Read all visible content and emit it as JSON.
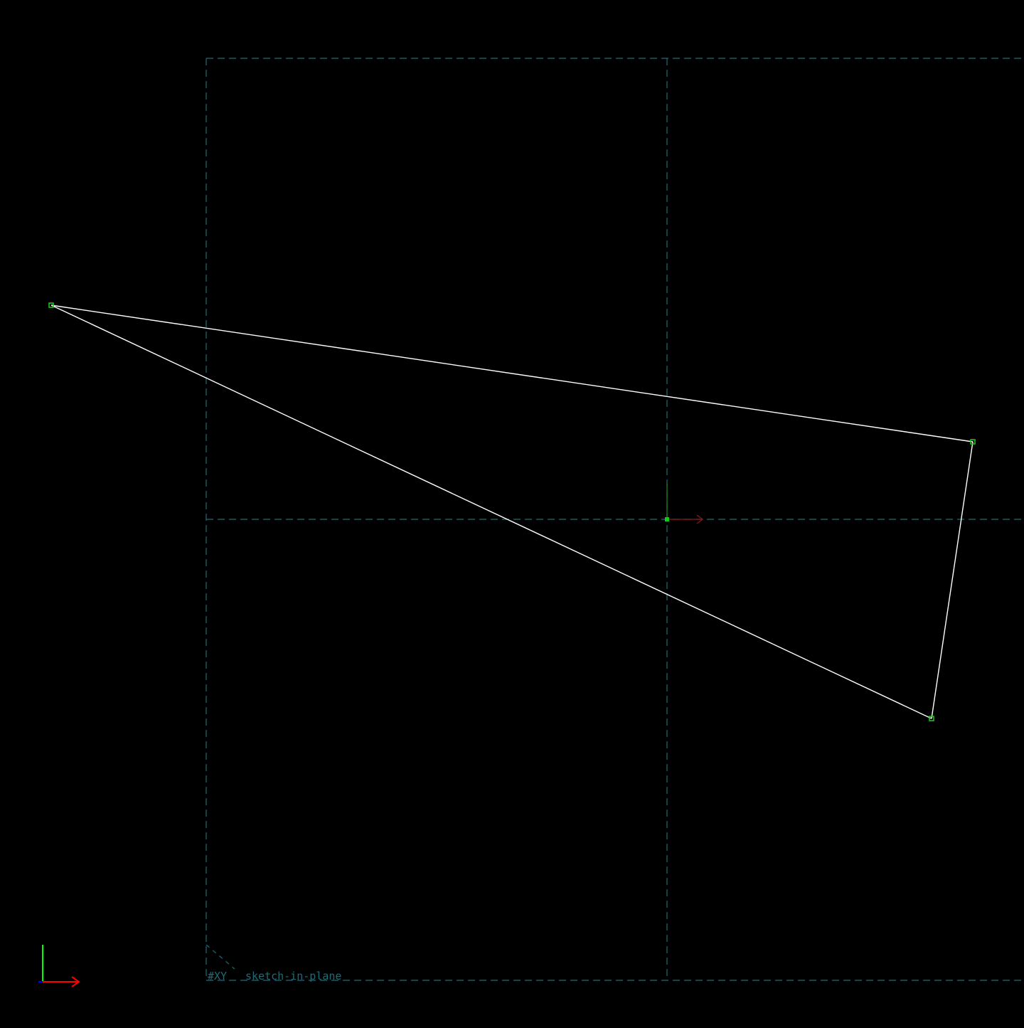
{
  "workplane": {
    "label": "#XY",
    "sublabel": "sketch-in-plane",
    "color": "#1f6b78",
    "label_color": "#1f6b78"
  },
  "sketch": {
    "line_color": "#ffffff",
    "point_color": "#22cc22",
    "origin_point_color": "#11cc11"
  },
  "origin_axes": {
    "x_color": "#8b1a1a",
    "y_color": "#1a8b1a"
  },
  "triad": {
    "x_color": "#ff0000",
    "y_color": "#00ff00",
    "z_color": "#0000ff",
    "x_label": "",
    "y_label": ""
  },
  "background": "#000000"
}
